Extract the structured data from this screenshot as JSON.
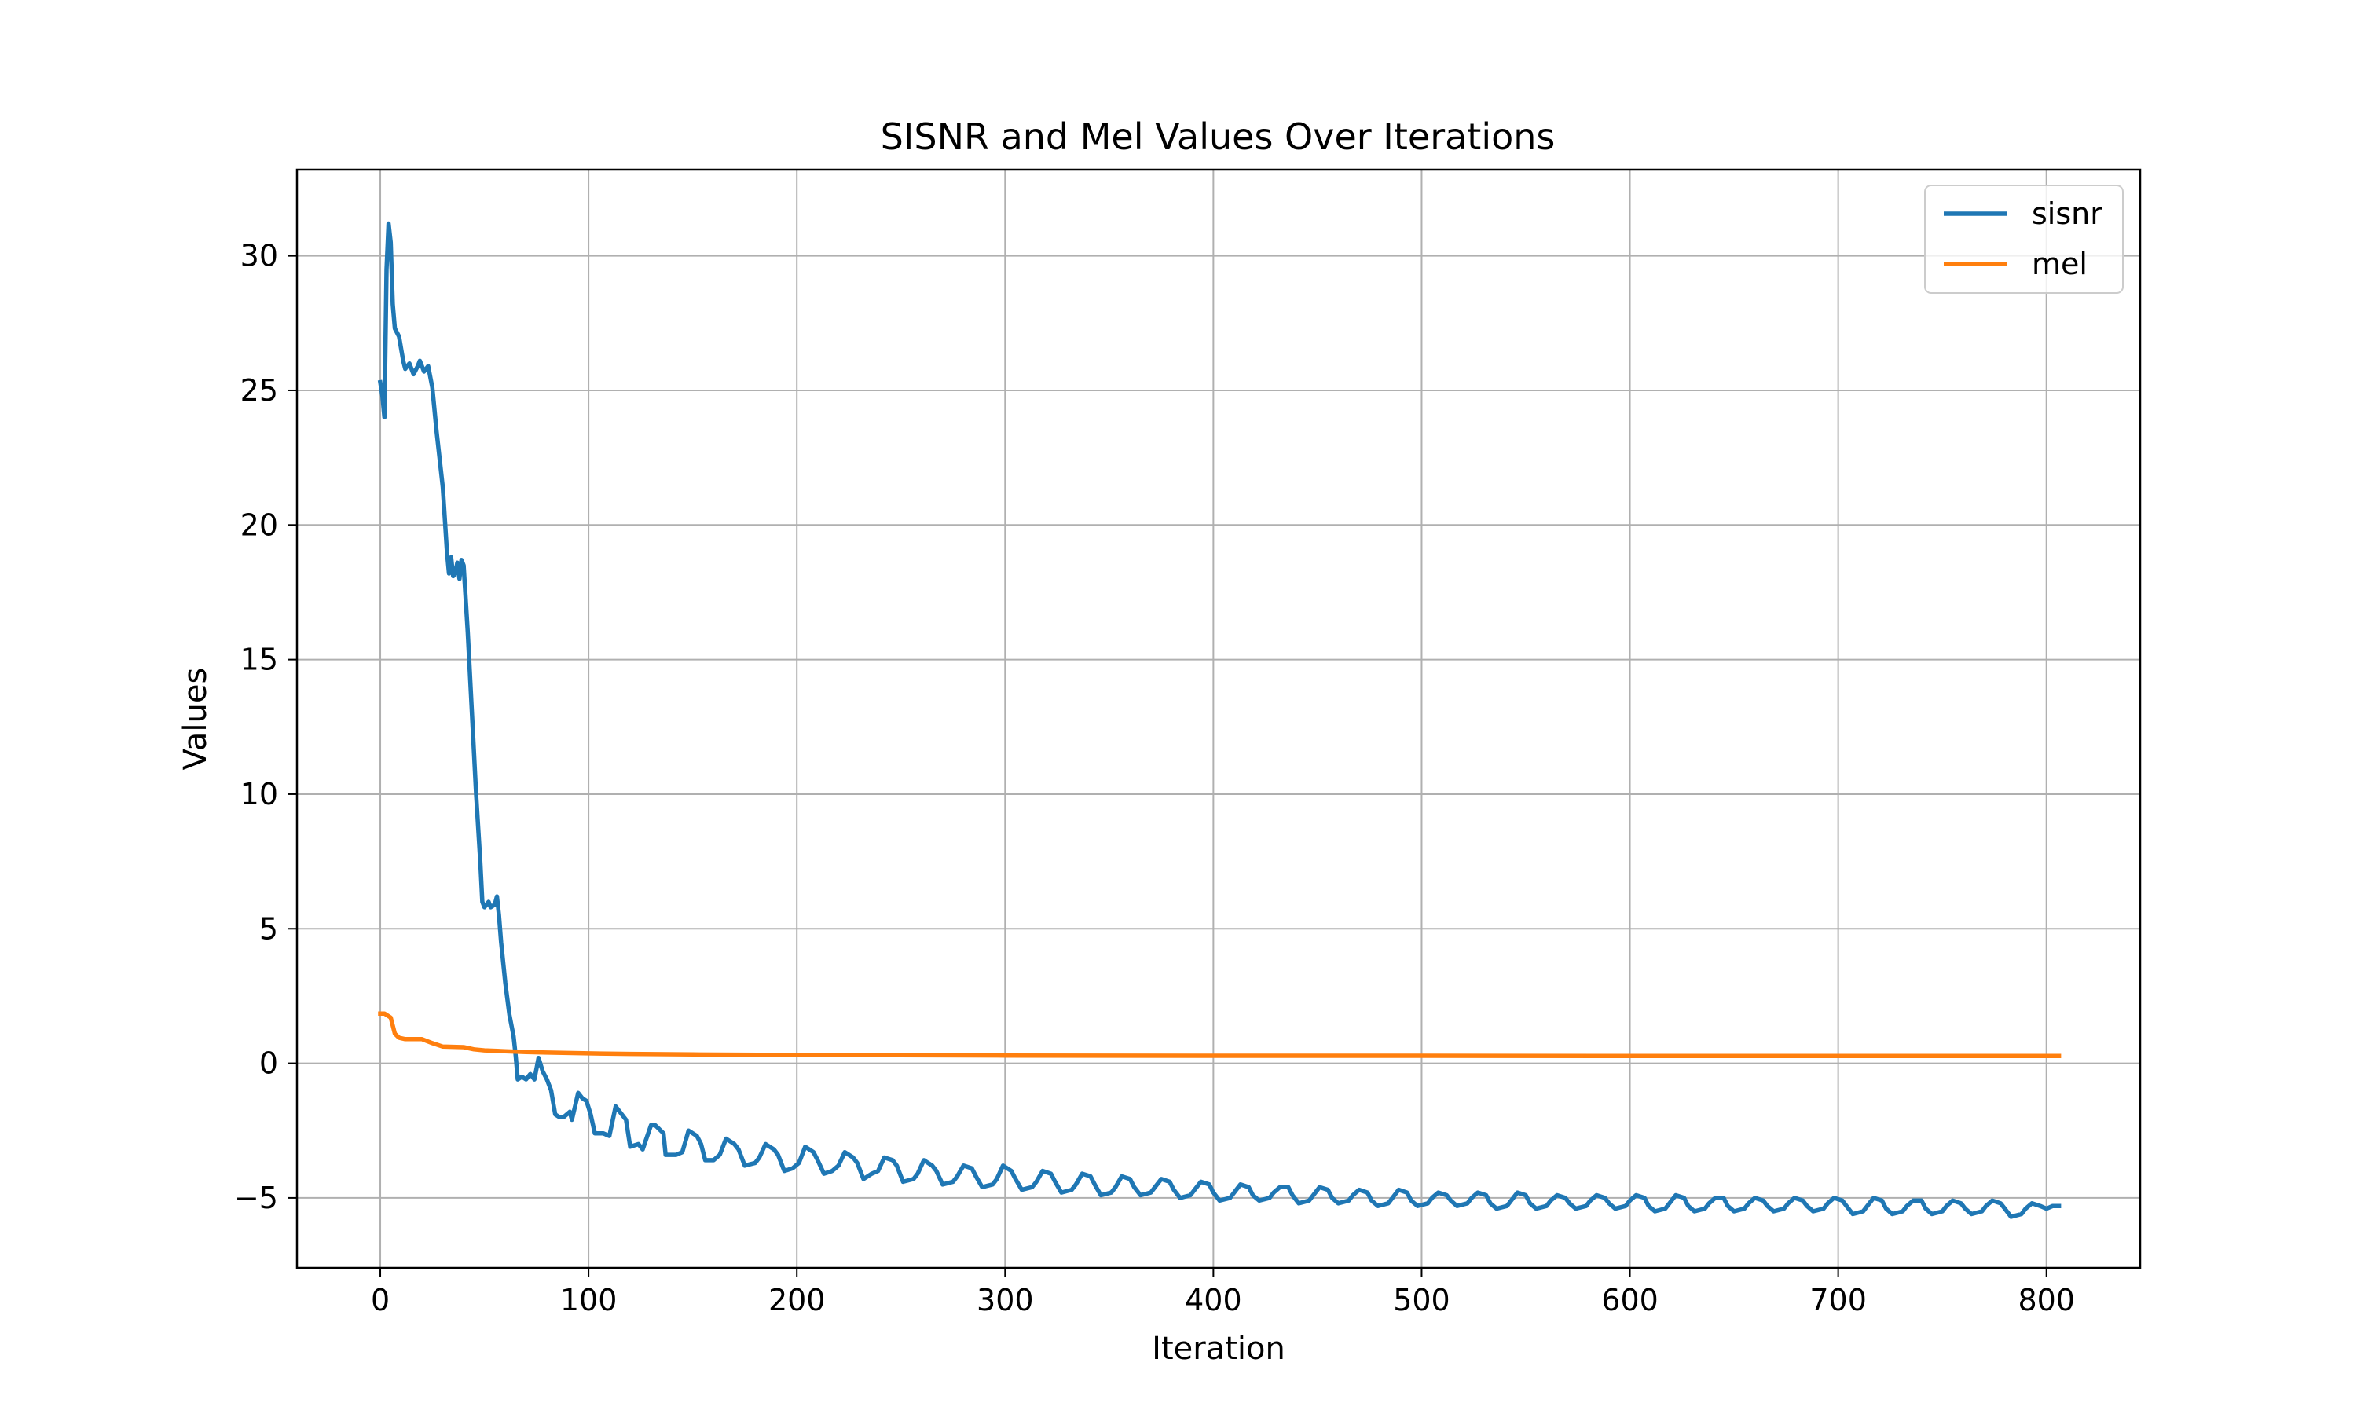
{
  "chart_data": {
    "type": "line",
    "title": "SISNR and Mel Values Over Iterations",
    "xlabel": "Iteration",
    "ylabel": "Values",
    "xlim": [
      -40,
      845
    ],
    "ylim": [
      -7.6,
      33.2
    ],
    "xticks": [
      0,
      100,
      200,
      300,
      400,
      500,
      600,
      700,
      800
    ],
    "yticks": [
      -5,
      0,
      5,
      10,
      15,
      20,
      25,
      30
    ],
    "ytick_labels": [
      "−5",
      "0",
      "5",
      "10",
      "15",
      "20",
      "25",
      "30"
    ],
    "grid": true,
    "legend_position": "top-right",
    "series": [
      {
        "name": "sisnr",
        "color": "#1f77b4",
        "points": [
          [
            0,
            25.3
          ],
          [
            1,
            24.8
          ],
          [
            2,
            24.0
          ],
          [
            3,
            29.5
          ],
          [
            4,
            31.2
          ],
          [
            5,
            30.5
          ],
          [
            6,
            28.2
          ],
          [
            7,
            27.3
          ],
          [
            9,
            27.0
          ],
          [
            11,
            26.1
          ],
          [
            12,
            25.8
          ],
          [
            14,
            26.0
          ],
          [
            16,
            25.6
          ],
          [
            18,
            25.9
          ],
          [
            19,
            26.1
          ],
          [
            21,
            25.7
          ],
          [
            23,
            25.9
          ],
          [
            25,
            25.1
          ],
          [
            27,
            23.5
          ],
          [
            30,
            21.4
          ],
          [
            32,
            19.0
          ],
          [
            33,
            18.2
          ],
          [
            34,
            18.8
          ],
          [
            35,
            18.1
          ],
          [
            36,
            18.2
          ],
          [
            37,
            18.6
          ],
          [
            38,
            18.0
          ],
          [
            39,
            18.7
          ],
          [
            40,
            18.5
          ],
          [
            42,
            16.0
          ],
          [
            44,
            13.0
          ],
          [
            46,
            10.0
          ],
          [
            48,
            7.5
          ],
          [
            49,
            6.0
          ],
          [
            50,
            5.8
          ],
          [
            52,
            6.0
          ],
          [
            53,
            5.8
          ],
          [
            55,
            5.9
          ],
          [
            56,
            6.2
          ],
          [
            57,
            5.5
          ],
          [
            58,
            4.5
          ],
          [
            60,
            3.0
          ],
          [
            62,
            1.8
          ],
          [
            64,
            1.0
          ],
          [
            65,
            0.3
          ],
          [
            66,
            -0.6
          ],
          [
            68,
            -0.5
          ],
          [
            70,
            -0.6
          ],
          [
            72,
            -0.4
          ],
          [
            74,
            -0.6
          ],
          [
            76,
            0.2
          ],
          [
            78,
            -0.3
          ],
          [
            80,
            -0.6
          ],
          [
            82,
            -1.0
          ],
          [
            84,
            -1.9
          ],
          [
            86,
            -2.0
          ],
          [
            88,
            -2.0
          ],
          [
            91,
            -1.8
          ],
          [
            92,
            -2.1
          ],
          [
            95,
            -1.1
          ],
          [
            97,
            -1.3
          ],
          [
            99,
            -1.4
          ],
          [
            101,
            -1.9
          ],
          [
            103,
            -2.6
          ],
          [
            107,
            -2.6
          ],
          [
            110,
            -2.7
          ],
          [
            113,
            -1.6
          ],
          [
            115,
            -1.8
          ],
          [
            118,
            -2.1
          ],
          [
            120,
            -3.1
          ],
          [
            124,
            -3.0
          ],
          [
            126,
            -3.2
          ],
          [
            130,
            -2.3
          ],
          [
            132,
            -2.3
          ],
          [
            136,
            -2.6
          ],
          [
            137,
            -3.4
          ],
          [
            142,
            -3.4
          ],
          [
            145,
            -3.3
          ],
          [
            148,
            -2.5
          ],
          [
            152,
            -2.7
          ],
          [
            154,
            -3.0
          ],
          [
            156,
            -3.6
          ],
          [
            160,
            -3.6
          ],
          [
            163,
            -3.4
          ],
          [
            166,
            -2.8
          ],
          [
            170,
            -3.0
          ],
          [
            172,
            -3.2
          ],
          [
            175,
            -3.8
          ],
          [
            180,
            -3.7
          ],
          [
            182,
            -3.5
          ],
          [
            185,
            -3.0
          ],
          [
            189,
            -3.2
          ],
          [
            191,
            -3.4
          ],
          [
            194,
            -4.0
          ],
          [
            198,
            -3.9
          ],
          [
            201,
            -3.7
          ],
          [
            204,
            -3.1
          ],
          [
            208,
            -3.3
          ],
          [
            210,
            -3.6
          ],
          [
            213,
            -4.1
          ],
          [
            217,
            -4.0
          ],
          [
            220,
            -3.8
          ],
          [
            223,
            -3.3
          ],
          [
            227,
            -3.5
          ],
          [
            229,
            -3.7
          ],
          [
            232,
            -4.3
          ],
          [
            236,
            -4.1
          ],
          [
            239,
            -4.0
          ],
          [
            242,
            -3.5
          ],
          [
            246,
            -3.6
          ],
          [
            248,
            -3.8
          ],
          [
            251,
            -4.4
          ],
          [
            256,
            -4.3
          ],
          [
            258,
            -4.1
          ],
          [
            261,
            -3.6
          ],
          [
            265,
            -3.8
          ],
          [
            267,
            -4.0
          ],
          [
            270,
            -4.5
          ],
          [
            275,
            -4.4
          ],
          [
            277,
            -4.2
          ],
          [
            280,
            -3.8
          ],
          [
            284,
            -3.9
          ],
          [
            286,
            -4.2
          ],
          [
            289,
            -4.6
          ],
          [
            294,
            -4.5
          ],
          [
            296,
            -4.3
          ],
          [
            299,
            -3.8
          ],
          [
            303,
            -4.0
          ],
          [
            305,
            -4.3
          ],
          [
            308,
            -4.7
          ],
          [
            313,
            -4.6
          ],
          [
            315,
            -4.4
          ],
          [
            318,
            -4.0
          ],
          [
            322,
            -4.1
          ],
          [
            324,
            -4.4
          ],
          [
            327,
            -4.8
          ],
          [
            332,
            -4.7
          ],
          [
            334,
            -4.5
          ],
          [
            337,
            -4.1
          ],
          [
            341,
            -4.2
          ],
          [
            343,
            -4.5
          ],
          [
            346,
            -4.9
          ],
          [
            351,
            -4.8
          ],
          [
            353,
            -4.6
          ],
          [
            356,
            -4.2
          ],
          [
            360,
            -4.3
          ],
          [
            362,
            -4.6
          ],
          [
            365,
            -4.9
          ],
          [
            370,
            -4.8
          ],
          [
            372,
            -4.6
          ],
          [
            375,
            -4.3
          ],
          [
            379,
            -4.4
          ],
          [
            381,
            -4.7
          ],
          [
            384,
            -5.0
          ],
          [
            389,
            -4.9
          ],
          [
            391,
            -4.7
          ],
          [
            394,
            -4.4
          ],
          [
            398,
            -4.5
          ],
          [
            400,
            -4.8
          ],
          [
            403,
            -5.1
          ],
          [
            408,
            -5.0
          ],
          [
            410,
            -4.8
          ],
          [
            413,
            -4.5
          ],
          [
            417,
            -4.6
          ],
          [
            419,
            -4.9
          ],
          [
            422,
            -5.1
          ],
          [
            427,
            -5.0
          ],
          [
            429,
            -4.8
          ],
          [
            432,
            -4.6
          ],
          [
            436,
            -4.6
          ],
          [
            438,
            -4.9
          ],
          [
            441,
            -5.2
          ],
          [
            446,
            -5.1
          ],
          [
            448,
            -4.9
          ],
          [
            451,
            -4.6
          ],
          [
            455,
            -4.7
          ],
          [
            457,
            -5.0
          ],
          [
            460,
            -5.2
          ],
          [
            465,
            -5.1
          ],
          [
            467,
            -4.9
          ],
          [
            470,
            -4.7
          ],
          [
            474,
            -4.8
          ],
          [
            476,
            -5.1
          ],
          [
            479,
            -5.3
          ],
          [
            484,
            -5.2
          ],
          [
            486,
            -5.0
          ],
          [
            489,
            -4.7
          ],
          [
            493,
            -4.8
          ],
          [
            495,
            -5.1
          ],
          [
            498,
            -5.3
          ],
          [
            503,
            -5.2
          ],
          [
            505,
            -5.0
          ],
          [
            508,
            -4.8
          ],
          [
            512,
            -4.9
          ],
          [
            514,
            -5.1
          ],
          [
            517,
            -5.3
          ],
          [
            522,
            -5.2
          ],
          [
            524,
            -5.0
          ],
          [
            527,
            -4.8
          ],
          [
            531,
            -4.9
          ],
          [
            533,
            -5.2
          ],
          [
            536,
            -5.4
          ],
          [
            541,
            -5.3
          ],
          [
            543,
            -5.1
          ],
          [
            546,
            -4.8
          ],
          [
            550,
            -4.9
          ],
          [
            552,
            -5.2
          ],
          [
            555,
            -5.4
          ],
          [
            560,
            -5.3
          ],
          [
            562,
            -5.1
          ],
          [
            565,
            -4.9
          ],
          [
            569,
            -5.0
          ],
          [
            571,
            -5.2
          ],
          [
            574,
            -5.4
          ],
          [
            579,
            -5.3
          ],
          [
            581,
            -5.1
          ],
          [
            584,
            -4.9
          ],
          [
            588,
            -5.0
          ],
          [
            590,
            -5.2
          ],
          [
            593,
            -5.4
          ],
          [
            598,
            -5.3
          ],
          [
            600,
            -5.1
          ],
          [
            603,
            -4.9
          ],
          [
            607,
            -5.0
          ],
          [
            609,
            -5.3
          ],
          [
            612,
            -5.5
          ],
          [
            617,
            -5.4
          ],
          [
            619,
            -5.2
          ],
          [
            622,
            -4.9
          ],
          [
            626,
            -5.0
          ],
          [
            628,
            -5.3
          ],
          [
            631,
            -5.5
          ],
          [
            636,
            -5.4
          ],
          [
            638,
            -5.2
          ],
          [
            641,
            -5.0
          ],
          [
            645,
            -5.0
          ],
          [
            647,
            -5.3
          ],
          [
            650,
            -5.5
          ],
          [
            655,
            -5.4
          ],
          [
            657,
            -5.2
          ],
          [
            660,
            -5.0
          ],
          [
            664,
            -5.1
          ],
          [
            666,
            -5.3
          ],
          [
            669,
            -5.5
          ],
          [
            674,
            -5.4
          ],
          [
            676,
            -5.2
          ],
          [
            679,
            -5.0
          ],
          [
            683,
            -5.1
          ],
          [
            685,
            -5.3
          ],
          [
            688,
            -5.5
          ],
          [
            693,
            -5.4
          ],
          [
            695,
            -5.2
          ],
          [
            698,
            -5.0
          ],
          [
            702,
            -5.1
          ],
          [
            704,
            -5.3
          ],
          [
            707,
            -5.6
          ],
          [
            712,
            -5.5
          ],
          [
            714,
            -5.3
          ],
          [
            717,
            -5.0
          ],
          [
            721,
            -5.1
          ],
          [
            723,
            -5.4
          ],
          [
            726,
            -5.6
          ],
          [
            731,
            -5.5
          ],
          [
            733,
            -5.3
          ],
          [
            736,
            -5.1
          ],
          [
            740,
            -5.1
          ],
          [
            742,
            -5.4
          ],
          [
            745,
            -5.6
          ],
          [
            750,
            -5.5
          ],
          [
            752,
            -5.3
          ],
          [
            755,
            -5.1
          ],
          [
            759,
            -5.2
          ],
          [
            761,
            -5.4
          ],
          [
            764,
            -5.6
          ],
          [
            769,
            -5.5
          ],
          [
            771,
            -5.3
          ],
          [
            774,
            -5.1
          ],
          [
            778,
            -5.2
          ],
          [
            780,
            -5.4
          ],
          [
            783,
            -5.7
          ],
          [
            788,
            -5.6
          ],
          [
            790,
            -5.4
          ],
          [
            793,
            -5.2
          ],
          [
            797,
            -5.3
          ],
          [
            800,
            -5.4
          ],
          [
            803,
            -5.3
          ],
          [
            806,
            -5.3
          ]
        ]
      },
      {
        "name": "mel",
        "color": "#ff7f0e",
        "points": [
          [
            0,
            1.85
          ],
          [
            2,
            1.85
          ],
          [
            5,
            1.7
          ],
          [
            7,
            1.1
          ],
          [
            9,
            0.95
          ],
          [
            12,
            0.9
          ],
          [
            15,
            0.9
          ],
          [
            20,
            0.9
          ],
          [
            25,
            0.75
          ],
          [
            30,
            0.62
          ],
          [
            40,
            0.6
          ],
          [
            45,
            0.52
          ],
          [
            50,
            0.48
          ],
          [
            60,
            0.45
          ],
          [
            70,
            0.42
          ],
          [
            80,
            0.4
          ],
          [
            100,
            0.37
          ],
          [
            120,
            0.35
          ],
          [
            150,
            0.33
          ],
          [
            200,
            0.31
          ],
          [
            250,
            0.3
          ],
          [
            300,
            0.29
          ],
          [
            400,
            0.28
          ],
          [
            500,
            0.28
          ],
          [
            600,
            0.27
          ],
          [
            700,
            0.27
          ],
          [
            806,
            0.27
          ]
        ]
      }
    ]
  }
}
